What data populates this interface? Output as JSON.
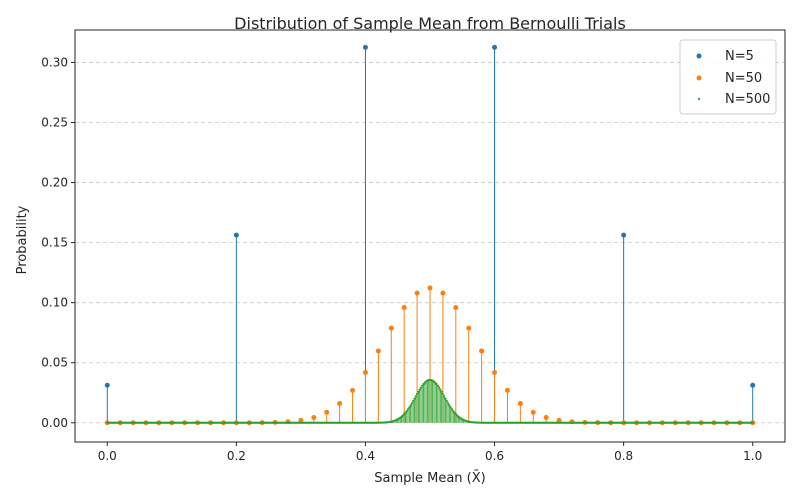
{
  "chart_data": {
    "type": "stem",
    "title": "Distribution of Sample Mean from Bernoulli Trials",
    "xlabel": "Sample Mean (X̄)",
    "ylabel": "Probability",
    "xlim": [
      -0.05,
      1.05
    ],
    "ylim": [
      -0.016,
      0.327
    ],
    "x_ticks": [
      0.0,
      0.2,
      0.4,
      0.6,
      0.8,
      1.0
    ],
    "x_tick_labels": [
      "0.0",
      "0.2",
      "0.4",
      "0.6",
      "0.8",
      "1.0"
    ],
    "y_ticks": [
      0.0,
      0.05,
      0.1,
      0.15,
      0.2,
      0.25,
      0.3
    ],
    "y_tick_labels": [
      "0.00",
      "0.05",
      "0.10",
      "0.15",
      "0.20",
      "0.25",
      "0.30"
    ],
    "grid": "y-dashed",
    "legend_position": "top-right",
    "p": 0.5,
    "series": [
      {
        "name": "N=5",
        "color": "#1f77b4",
        "marker_radius": 2.5,
        "n": 5,
        "x": [
          0.0,
          0.2,
          0.4,
          0.6,
          0.8,
          1.0
        ],
        "y": [
          0.03125,
          0.15625,
          0.3125,
          0.3125,
          0.15625,
          0.03125
        ]
      },
      {
        "name": "N=50",
        "color": "#ff7f0e",
        "marker_radius": 2.5,
        "n": 50,
        "x": [],
        "y": []
      },
      {
        "name": "N=500",
        "color": "#2ca02c",
        "marker_radius": 1.1,
        "n": 500,
        "x": [],
        "y": []
      }
    ]
  }
}
